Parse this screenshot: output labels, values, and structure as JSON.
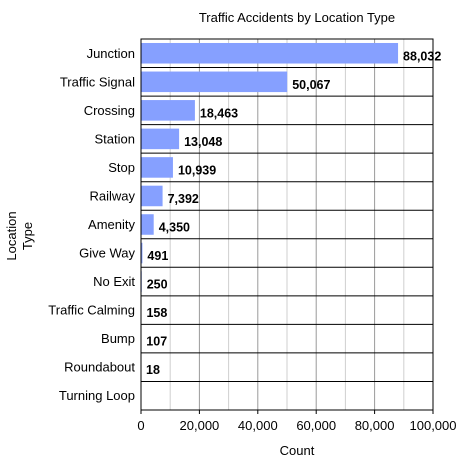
{
  "chart_data": {
    "type": "bar",
    "orientation": "horizontal",
    "title": "Traffic Accidents by Location Type",
    "xlabel": "Count",
    "ylabel": "Location Type",
    "categories": [
      "Junction",
      "Traffic Signal",
      "Crossing",
      "Station",
      "Stop",
      "Railway",
      "Amenity",
      "Give Way",
      "No Exit",
      "Traffic Calming",
      "Bump",
      "Roundabout",
      "Turning Loop"
    ],
    "values": [
      88032,
      50067,
      18463,
      13048,
      10939,
      7392,
      4350,
      491,
      250,
      158,
      107,
      18,
      0
    ],
    "value_labels": [
      "88,032",
      "50,067",
      "18,463",
      "13,048",
      "10,939",
      "7,392",
      "4,350",
      "491",
      "250",
      "158",
      "107",
      "18",
      ""
    ],
    "xlim": [
      0,
      100000
    ],
    "xticks": [
      0,
      20000,
      40000,
      60000,
      80000,
      100000
    ],
    "xtick_labels": [
      "0",
      "20,000",
      "40,000",
      "60,000",
      "80,000",
      "100,000"
    ],
    "grid": true,
    "bar_color": "#86a0ff",
    "legend": "none"
  }
}
